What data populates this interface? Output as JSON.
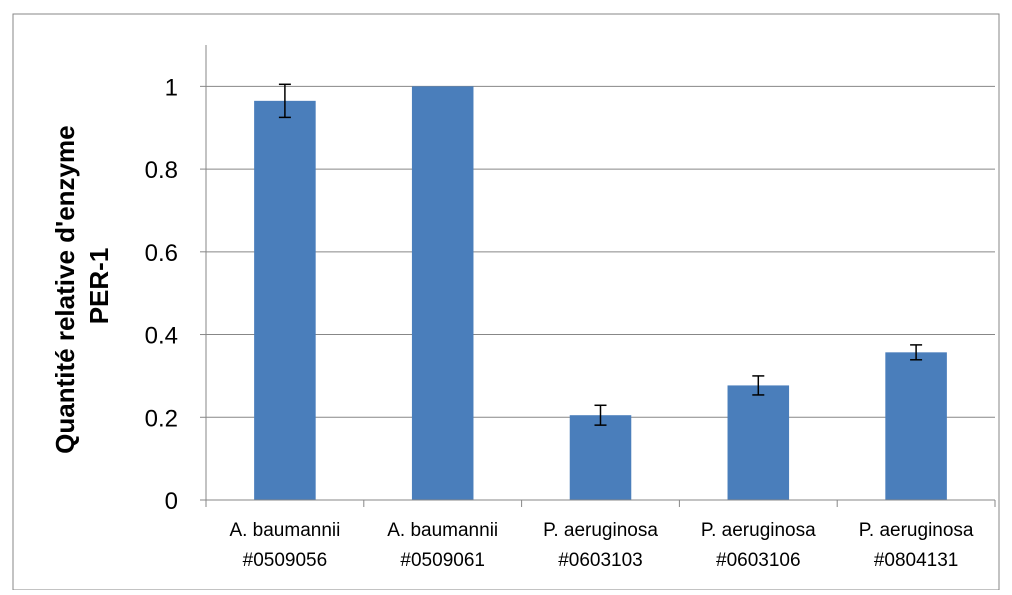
{
  "chart_data": {
    "type": "bar",
    "title": "",
    "xlabel": "",
    "ylabel": "Quantité relative d'enzyme PER-1",
    "ylabel_lines": [
      "Quantité relative d'enzyme",
      "PER-1"
    ],
    "categories": [
      [
        "A. baumannii",
        "#0509056"
      ],
      [
        "A. baumannii",
        "#0509061"
      ],
      [
        "P. aeruginosa",
        "#0603103"
      ],
      [
        "P. aeruginosa",
        "#0603106"
      ],
      [
        "P. aeruginosa",
        "#0804131"
      ]
    ],
    "values": [
      0.965,
      1.0,
      0.205,
      0.277,
      0.357
    ],
    "errors": [
      0.04,
      0,
      0.024,
      0.023,
      0.018
    ],
    "ylim": [
      0,
      1.1
    ],
    "yticks": [
      0,
      0.2,
      0.4,
      0.6,
      0.8,
      1
    ],
    "ytick_labels": [
      "0",
      "0.2",
      "0.4",
      "0.6",
      "0.8",
      "1"
    ],
    "grid": true,
    "legend": "none",
    "colors": {
      "bar": "#4a7ebb",
      "grid": "#878787",
      "axis": "#878787",
      "frame": "#878787",
      "errorbar": "#000000"
    }
  }
}
